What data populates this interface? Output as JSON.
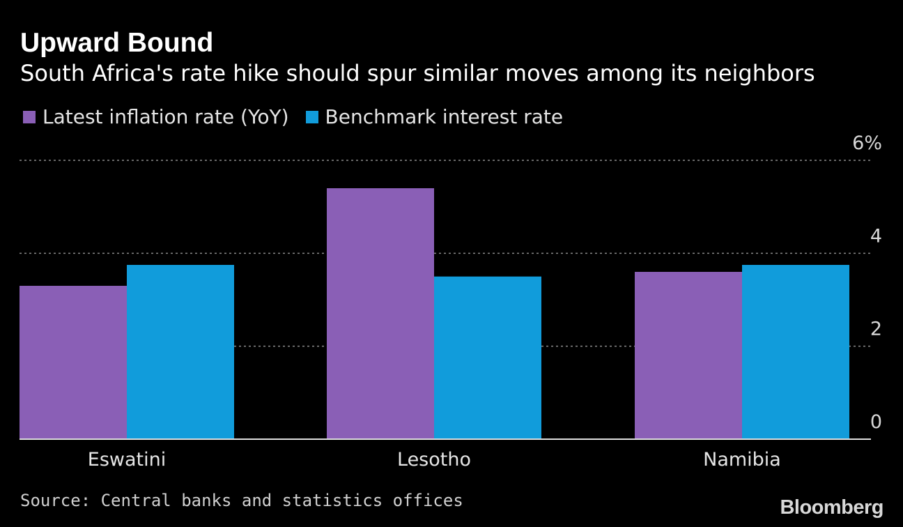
{
  "title": "Upward Bound",
  "subtitle": "South Africa's rate hike should spur similar moves among its neighbors",
  "legend": [
    {
      "label": "Latest inflation rate (YoY)",
      "color": "#8a5fb6"
    },
    {
      "label": "Benchmark interest rate",
      "color": "#119cdb"
    }
  ],
  "source": "Source: Central banks and statistics offices",
  "brand": "Bloomberg",
  "chart_data": {
    "type": "bar",
    "categories": [
      "Eswatini",
      "Lesotho",
      "Namibia"
    ],
    "series": [
      {
        "name": "Latest inflation rate (YoY)",
        "values": [
          3.3,
          5.4,
          3.6
        ],
        "color": "#8a5fb6"
      },
      {
        "name": "Benchmark interest rate",
        "values": [
          3.75,
          3.5,
          3.75
        ],
        "color": "#119cdb"
      }
    ],
    "ylim": [
      0,
      6
    ],
    "yticks": [
      0,
      2,
      4,
      6
    ],
    "ytick_labels": [
      "0",
      "2",
      "4",
      "6%"
    ],
    "grid": true,
    "legend_position": "top-left"
  }
}
